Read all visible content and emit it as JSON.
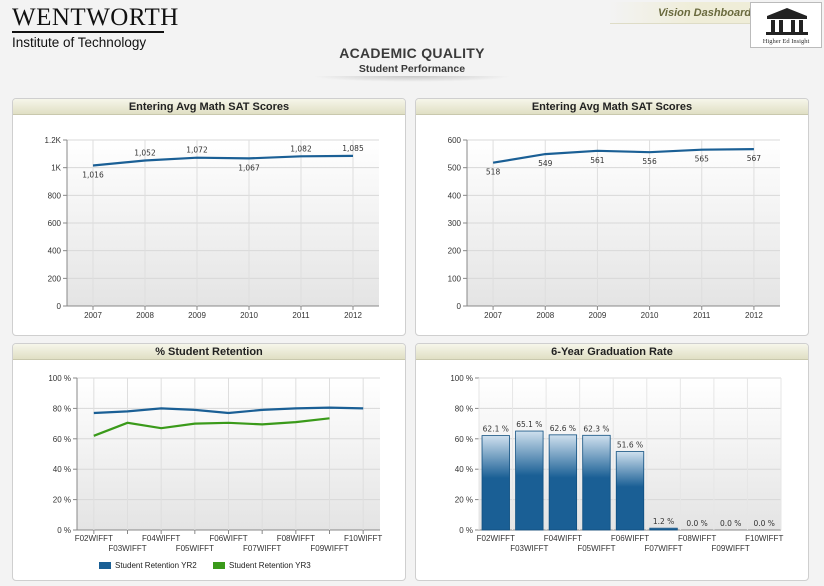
{
  "header": {
    "logo_main": "WENTWORTH",
    "logo_sub": "Institute of Technology",
    "brand_label": "Vision Dashboard",
    "brand_box_text": "Higher Ed Insight",
    "page_title": "ACADEMIC QUALITY",
    "page_subtitle": "Student Performance"
  },
  "colors": {
    "blue": "#1a5f95",
    "green": "#3a9a1a",
    "bar_top": "#cfe0ee",
    "header_bg": "#e0dfc4"
  },
  "panels": {
    "p1": {
      "title": "Entering Avg Math SAT Scores"
    },
    "p2": {
      "title": "Entering Avg Math SAT Scores"
    },
    "p3": {
      "title": "% Student Retention"
    },
    "p4": {
      "title": "6-Year Graduation Rate"
    }
  },
  "chart_data": [
    {
      "type": "line",
      "title": "Entering Avg Math SAT Scores",
      "x": [
        "2007",
        "2008",
        "2009",
        "2010",
        "2011",
        "2012"
      ],
      "series": [
        {
          "values": [
            1016,
            1052,
            1072,
            1067,
            1082,
            1085
          ]
        }
      ],
      "data_labels": [
        "1,016",
        "1,052",
        "1,072",
        "1,067",
        "1,082",
        "1,085"
      ],
      "label_pos": [
        "below",
        "above",
        "above",
        "below",
        "above",
        "above"
      ],
      "ylim": [
        0,
        1200
      ],
      "yticks": [
        0,
        200,
        400,
        600,
        800,
        1000,
        1200
      ],
      "ytick_labels": [
        "0",
        "200",
        "400",
        "600",
        "800",
        "1K",
        "1.2K"
      ],
      "grid": true
    },
    {
      "type": "line",
      "title": "Entering Avg Math SAT Scores",
      "x": [
        "2007",
        "2008",
        "2009",
        "2010",
        "2011",
        "2012"
      ],
      "series": [
        {
          "values": [
            518,
            549,
            561,
            556,
            565,
            567
          ]
        }
      ],
      "data_labels": [
        "518",
        "549",
        "561",
        "556",
        "565",
        "567"
      ],
      "label_pos": [
        "below",
        "below",
        "below",
        "below",
        "below",
        "below"
      ],
      "ylim": [
        0,
        600
      ],
      "yticks": [
        0,
        100,
        200,
        300,
        400,
        500,
        600
      ],
      "ytick_labels": [
        "0",
        "100",
        "200",
        "300",
        "400",
        "500",
        "600"
      ],
      "grid": true
    },
    {
      "type": "line",
      "title": "% Student Retention",
      "categories": [
        "F02WIFFT",
        "F03WIFFT",
        "F04WIFFT",
        "F05WIFFT",
        "F06WIFFT",
        "F07WIFFT",
        "F08WIFFT",
        "F09WIFFT",
        "F10WIFFT"
      ],
      "series": [
        {
          "name": "Student Retention YR2",
          "values": [
            77,
            78,
            80,
            79,
            77,
            79,
            80,
            80.5,
            80
          ]
        },
        {
          "name": "Student Retention YR3",
          "values": [
            62,
            70.5,
            67,
            70,
            70.5,
            69.5,
            71,
            73.5,
            null
          ]
        }
      ],
      "ylim": [
        0,
        100
      ],
      "yticks": [
        0,
        20,
        40,
        60,
        80,
        100
      ],
      "ytick_labels": [
        "0 %",
        "20 %",
        "40 %",
        "60 %",
        "80 %",
        "100 %"
      ],
      "legend": "bottom",
      "grid": true
    },
    {
      "type": "bar",
      "title": "6-Year Graduation Rate",
      "categories": [
        "F02WIFFT",
        "F03WIFFT",
        "F04WIFFT",
        "F05WIFFT",
        "F06WIFFT",
        "F07WIFFT",
        "F08WIFFT",
        "F09WIFFT",
        "F10WIFFT"
      ],
      "values": [
        62.1,
        65.1,
        62.6,
        62.3,
        51.6,
        1.2,
        0.0,
        0.0,
        0.0
      ],
      "data_labels": [
        "62.1 %",
        "65.1 %",
        "62.6 %",
        "62.3 %",
        "51.6 %",
        "1.2 %",
        "0.0 %",
        "0.0 %",
        "0.0 %"
      ],
      "ylim": [
        0,
        100
      ],
      "yticks": [
        0,
        20,
        40,
        60,
        80,
        100
      ],
      "ytick_labels": [
        "0 %",
        "20 %",
        "40 %",
        "60 %",
        "80 %",
        "100 %"
      ],
      "grid": true
    }
  ]
}
